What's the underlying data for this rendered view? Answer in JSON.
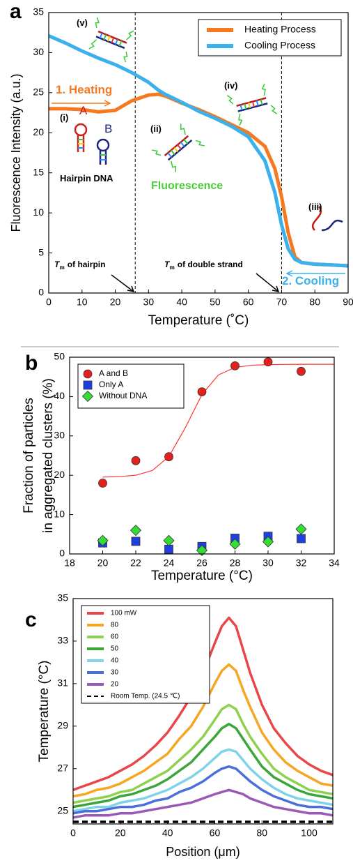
{
  "chart_data": [
    {
      "type": "line",
      "panel_label": "a",
      "ylabel": "Fluorescence Intensity (a.u.)",
      "xlabel": "Temperature (˚C)",
      "x": [
        0,
        5,
        10,
        15,
        20,
        25,
        30,
        33,
        35,
        40,
        45,
        50,
        55,
        60,
        65,
        68,
        70,
        72,
        74,
        76,
        80,
        85,
        90
      ],
      "series": [
        {
          "name": "Heating Process",
          "color": "#f47920",
          "values": [
            23,
            23,
            22.9,
            22.6,
            22.8,
            24,
            24.7,
            24.8,
            24.6,
            23.7,
            22.9,
            22.0,
            21.0,
            20.0,
            18.3,
            15.5,
            12.0,
            7.5,
            4.5,
            3.8,
            3.6,
            3.5,
            3.4
          ]
        },
        {
          "name": "Cooling Process",
          "color": "#3bb0ea",
          "values": [
            32.1,
            31.2,
            30.2,
            29.3,
            28.5,
            27.5,
            26.3,
            25.3,
            24.8,
            23.8,
            22.7,
            21.8,
            20.8,
            19.5,
            16.5,
            12.5,
            8.5,
            5.5,
            4.2,
            3.8,
            3.6,
            3.5,
            3.4
          ]
        }
      ],
      "vlines": [
        26,
        70
      ],
      "xlim": [
        0,
        90
      ],
      "xticks": [
        0,
        10,
        20,
        30,
        40,
        50,
        60,
        70,
        80,
        90
      ],
      "ylim": [
        0,
        35
      ],
      "yticks": [
        0,
        5,
        10,
        15,
        20,
        25,
        30,
        35
      ],
      "legend": "upper right",
      "annotations": [
        {
          "text": "1. Heating",
          "color": "#f47920"
        },
        {
          "text": "2. Cooling",
          "color": "#3bb0ea"
        },
        {
          "text": "(i)",
          "color": "#000000"
        },
        {
          "text": "A",
          "color": "#d01c1c"
        },
        {
          "text": "B",
          "color": "#1a237e"
        },
        {
          "text": "Hairpin DNA",
          "color": "#000000"
        },
        {
          "text": "(ii)",
          "color": "#000000"
        },
        {
          "text": "Fluorescence",
          "color": "#4ccc3c"
        },
        {
          "text": "(iii)",
          "color": "#000000"
        },
        {
          "text": "(iv)",
          "color": "#000000"
        },
        {
          "text": "(v)",
          "color": "#000000"
        },
        {
          "symbol": "T",
          "subscript": "m",
          "text": "of hairpin",
          "color": "#000000"
        },
        {
          "symbol": "T",
          "subscript": "m",
          "text": "of double strand",
          "color": "#000000"
        }
      ]
    },
    {
      "type": "scatter",
      "panel_label": "b",
      "ylabel": [
        "Fraction of particles",
        "in aggregated clusters (%)"
      ],
      "xlabel": "Temperature (°C)",
      "x": [
        20,
        22,
        24,
        26,
        28,
        30,
        32
      ],
      "series": [
        {
          "name": "A and B",
          "color": "#e3201c",
          "marker": "circle",
          "values": [
            18,
            23.7,
            24.7,
            41.2,
            47.8,
            48.8,
            46.4
          ]
        },
        {
          "name": "Only A",
          "color": "#1f3fe0",
          "marker": "square",
          "values": [
            2.8,
            3.2,
            1.2,
            1.9,
            4,
            4.5,
            3.9
          ]
        },
        {
          "name": "Without DNA",
          "color": "#33dd33",
          "marker": "diamond",
          "values": [
            3.4,
            6,
            3.4,
            0.9,
            2.5,
            3.1,
            6.3
          ]
        }
      ],
      "fit": {
        "color": "#ff3333",
        "x": [
          20,
          21,
          22,
          23,
          24,
          25,
          26,
          27,
          28,
          29,
          30,
          31,
          32,
          33,
          34
        ],
        "values": [
          19.54,
          19.65,
          20.01,
          21.2,
          24.74,
          32.1,
          40.5,
          45.5,
          47.4,
          47.95,
          48.12,
          48.17,
          48.2,
          48.2,
          48.2
        ]
      },
      "xlim": [
        18,
        34
      ],
      "xticks": [
        18,
        20,
        22,
        24,
        26,
        28,
        30,
        32,
        34
      ],
      "ylim": [
        0,
        50
      ],
      "yticks": [
        0,
        10,
        20,
        30,
        40,
        50
      ],
      "legend": "upper left"
    },
    {
      "type": "line",
      "panel_label": "c",
      "ylabel": "Temperature (°C)",
      "xlabel": "Position (μm)",
      "x": [
        0,
        5,
        10,
        15,
        20,
        25,
        30,
        35,
        40,
        45,
        50,
        55,
        60,
        63,
        66,
        69,
        72,
        75,
        80,
        85,
        90,
        95,
        100,
        105,
        110
      ],
      "series": [
        {
          "name": "100 mW",
          "color": "#e8474a",
          "values": [
            26.0,
            26.2,
            26.4,
            26.6,
            26.9,
            27.2,
            27.6,
            28.1,
            28.7,
            29.5,
            30.4,
            31.5,
            32.9,
            33.7,
            34.1,
            33.7,
            32.6,
            31.5,
            30.0,
            28.9,
            28.2,
            27.6,
            27.2,
            26.9,
            26.7
          ]
        },
        {
          "name": "80",
          "color": "#f5a623",
          "values": [
            25.7,
            25.8,
            26.0,
            26.1,
            26.3,
            26.6,
            26.9,
            27.3,
            27.7,
            28.4,
            29.0,
            29.9,
            31.0,
            31.6,
            31.9,
            31.6,
            30.7,
            29.9,
            28.7,
            27.9,
            27.3,
            26.9,
            26.6,
            26.3,
            26.2
          ]
        },
        {
          "name": "60",
          "color": "#8fd14f",
          "values": [
            25.4,
            25.5,
            25.6,
            25.7,
            25.9,
            26.0,
            26.3,
            26.6,
            26.9,
            27.4,
            27.9,
            28.5,
            29.3,
            29.8,
            30.0,
            29.8,
            29.1,
            28.5,
            27.7,
            27.0,
            26.6,
            26.3,
            26.0,
            25.9,
            25.8
          ]
        },
        {
          "name": "50",
          "color": "#3aa63a",
          "values": [
            25.2,
            25.3,
            25.4,
            25.5,
            25.7,
            25.8,
            26.0,
            26.2,
            26.5,
            26.9,
            27.3,
            27.9,
            28.5,
            28.9,
            29.1,
            28.9,
            28.4,
            27.9,
            27.1,
            26.6,
            26.3,
            26.0,
            25.8,
            25.7,
            25.6
          ]
        },
        {
          "name": "40",
          "color": "#7fd3e8",
          "values": [
            25.0,
            25.1,
            25.2,
            25.2,
            25.4,
            25.5,
            25.6,
            25.8,
            26.0,
            26.3,
            26.6,
            27.0,
            27.5,
            27.8,
            27.9,
            27.8,
            27.4,
            27.0,
            26.5,
            26.1,
            25.8,
            25.6,
            25.5,
            25.4,
            25.3
          ]
        },
        {
          "name": "30",
          "color": "#4a6fd9",
          "values": [
            24.9,
            25.0,
            25.0,
            25.1,
            25.2,
            25.2,
            25.3,
            25.5,
            25.6,
            25.9,
            26.1,
            26.4,
            26.8,
            27.0,
            27.1,
            27.0,
            26.7,
            26.4,
            26.0,
            25.7,
            25.5,
            25.3,
            25.2,
            25.2,
            25.1
          ]
        },
        {
          "name": "20",
          "color": "#9b59b6",
          "values": [
            24.7,
            24.8,
            24.8,
            24.8,
            24.9,
            24.9,
            25.0,
            25.1,
            25.2,
            25.3,
            25.4,
            25.6,
            25.8,
            25.9,
            26.0,
            25.9,
            25.8,
            25.6,
            25.4,
            25.2,
            25.1,
            25.0,
            24.9,
            24.9,
            24.8
          ]
        },
        {
          "name": "Room Temp. (24.5 ℃)",
          "color": "#000000",
          "dashed": true,
          "x": [
            0,
            110
          ],
          "values": [
            24.5,
            24.5
          ]
        }
      ],
      "xlim": [
        0,
        110
      ],
      "xticks": [
        0,
        20,
        40,
        60,
        80,
        100
      ],
      "ylim": [
        24.4,
        35
      ],
      "yticks": [
        25,
        27,
        29,
        31,
        33,
        35
      ],
      "legend": "upper left"
    }
  ]
}
